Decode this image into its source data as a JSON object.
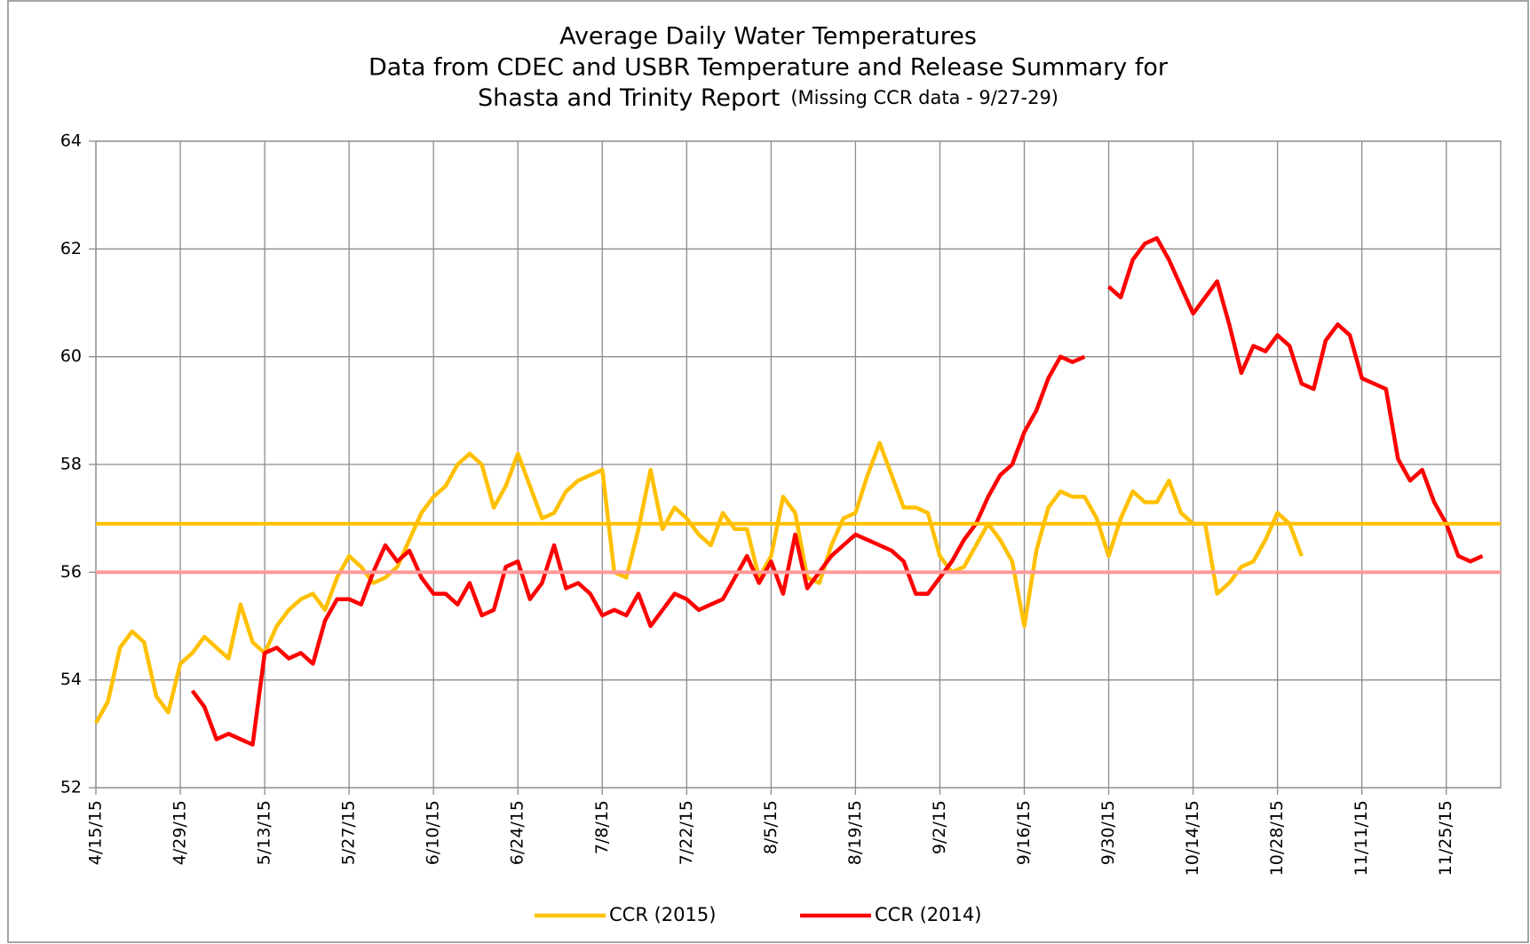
{
  "chart_data": {
    "type": "line",
    "title": [
      "Average Daily Water Temperatures",
      "Data from  CDEC and USBR Temperature  and Release Summary  for",
      "Shasta and Trinity  Report"
    ],
    "note": "(Missing CCR data - 9/27-29)",
    "categories": [
      "4/15/15",
      null,
      null,
      null,
      null,
      null,
      null,
      "4/29/15",
      null,
      null,
      null,
      null,
      null,
      null,
      "5/13/15",
      null,
      null,
      null,
      null,
      null,
      null,
      "5/27/15",
      null,
      null,
      null,
      null,
      null,
      null,
      "6/10/15",
      null,
      null,
      null,
      null,
      null,
      null,
      "6/24/15",
      null,
      null,
      null,
      null,
      null,
      null,
      "7/8/15",
      null,
      null,
      null,
      null,
      null,
      null,
      "7/22/15",
      null,
      null,
      null,
      null,
      null,
      null,
      "8/5/15",
      null,
      null,
      null,
      null,
      null,
      null,
      "8/19/15",
      null,
      null,
      null,
      null,
      null,
      null,
      "9/2/15",
      null,
      null,
      null,
      null,
      null,
      null,
      "9/16/15",
      null,
      null,
      null,
      null,
      null,
      null,
      "9/30/15",
      null,
      null,
      null,
      null,
      null,
      null,
      "10/14/15",
      null,
      null,
      null,
      null,
      null,
      null,
      "10/28/15",
      null,
      null,
      null,
      null,
      null,
      null,
      "11/11/15",
      null,
      null,
      null,
      null,
      null,
      null,
      "11/25/15",
      null,
      null,
      null,
      null
    ],
    "series": [
      {
        "name": "CCR (2015)",
        "color": "#ffc000",
        "values": [
          53.2,
          53.6,
          54.6,
          54.9,
          54.7,
          53.7,
          53.4,
          54.3,
          54.5,
          54.8,
          54.6,
          54.4,
          55.4,
          54.7,
          54.5,
          55.0,
          55.3,
          55.5,
          55.6,
          55.3,
          55.9,
          56.3,
          56.1,
          55.8,
          55.9,
          56.1,
          56.6,
          57.1,
          57.4,
          57.6,
          58.0,
          58.2,
          58.0,
          57.2,
          57.6,
          58.2,
          57.6,
          57.0,
          57.1,
          57.5,
          57.7,
          57.8,
          57.9,
          56.0,
          55.9,
          56.8,
          57.9,
          56.8,
          57.2,
          57.0,
          56.7,
          56.5,
          57.1,
          56.8,
          56.8,
          55.9,
          56.3,
          57.4,
          57.1,
          55.9,
          55.8,
          56.5,
          57.0,
          57.1,
          57.8,
          58.4,
          57.8,
          57.2,
          57.2,
          57.1,
          56.3,
          56.0,
          56.1,
          56.5,
          56.9,
          56.6,
          56.2,
          55.0,
          56.4,
          57.2,
          57.5,
          57.4,
          57.4,
          57.0,
          56.3,
          57.0,
          57.5,
          57.3,
          57.3,
          57.7,
          57.1,
          56.9,
          56.9,
          55.6,
          55.8,
          56.1,
          56.2,
          56.6,
          57.1,
          56.9,
          56.3,
          null,
          null,
          null,
          null,
          null,
          null,
          null,
          null,
          null,
          null,
          null,
          null,
          null,
          null,
          null,
          null
        ]
      },
      {
        "name": "CCR (2014)",
        "color": "#ff0000",
        "values": [
          null,
          null,
          null,
          null,
          null,
          null,
          null,
          null,
          53.8,
          53.5,
          52.9,
          53.0,
          52.9,
          52.8,
          54.5,
          54.6,
          54.4,
          54.5,
          54.3,
          55.1,
          55.5,
          55.5,
          55.4,
          56.0,
          56.5,
          56.2,
          56.4,
          55.9,
          55.6,
          55.6,
          55.4,
          55.8,
          55.2,
          55.3,
          56.1,
          56.2,
          55.5,
          55.8,
          56.5,
          55.7,
          55.8,
          55.6,
          55.2,
          55.3,
          55.2,
          55.6,
          55.0,
          55.3,
          55.6,
          55.5,
          55.3,
          55.4,
          55.5,
          55.9,
          56.3,
          55.8,
          56.2,
          55.6,
          56.7,
          55.7,
          56.0,
          56.3,
          56.5,
          56.7,
          56.6,
          56.5,
          56.4,
          56.2,
          55.6,
          55.6,
          55.9,
          56.2,
          56.6,
          56.9,
          57.4,
          57.8,
          58.0,
          58.6,
          59.0,
          59.6,
          60.0,
          59.9,
          60.0,
          null,
          61.3,
          61.1,
          61.8,
          62.1,
          62.2,
          61.8,
          61.3,
          60.8,
          61.1,
          61.4,
          60.6,
          59.7,
          60.2,
          60.1,
          60.4,
          60.2,
          59.5,
          59.4,
          60.3,
          60.6,
          60.4,
          59.6,
          59.5,
          59.4,
          58.1,
          57.7,
          57.9,
          57.3,
          56.9,
          56.3,
          56.2,
          56.3,
          null
        ]
      }
    ],
    "reference_lines": [
      {
        "value": 56.9,
        "color": "#ffc000"
      },
      {
        "value": 56,
        "color": "#ff9999"
      }
    ],
    "ylim": [
      52,
      64
    ],
    "yticks": [
      52,
      54,
      56,
      58,
      60,
      62,
      64
    ],
    "grid": true,
    "legend": "bottom"
  }
}
